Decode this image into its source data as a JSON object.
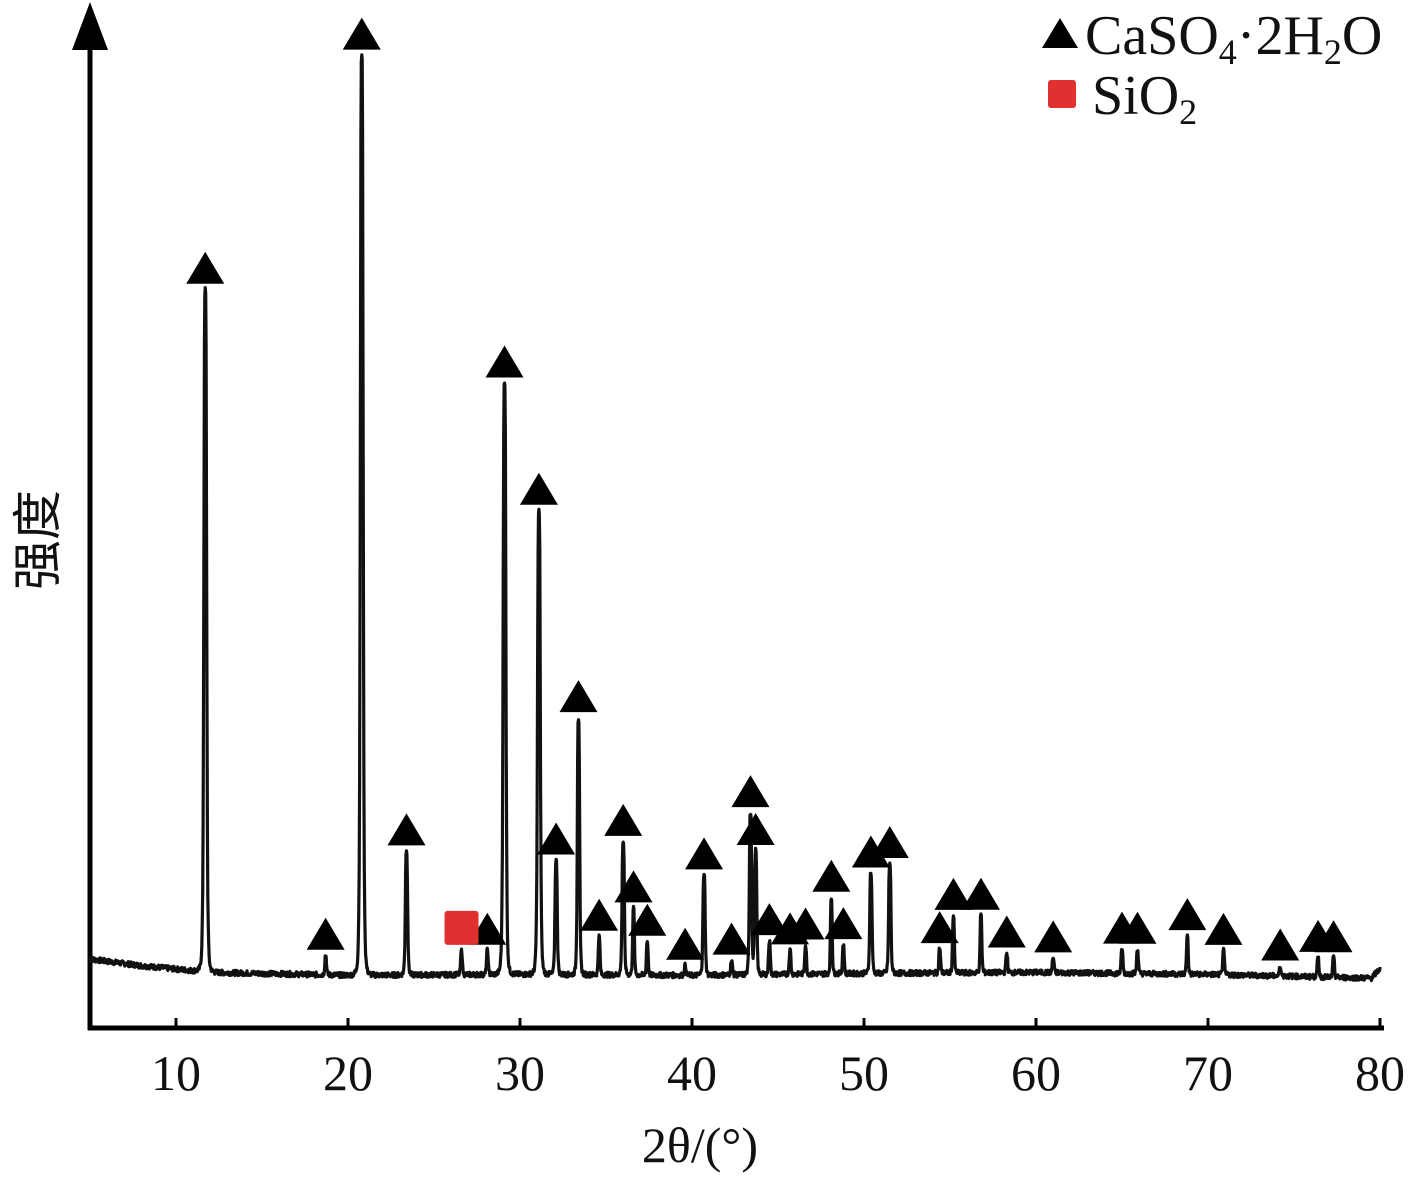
{
  "chart_data": {
    "type": "line",
    "xlabel": "2θ/(°)",
    "ylabel": "强度",
    "xlim": [
      5,
      80
    ],
    "ylim": [
      0,
      100
    ],
    "x_ticks": [
      "10",
      "20",
      "30",
      "40",
      "50",
      "60",
      "70",
      "80"
    ],
    "grid": false,
    "legend": {
      "position": "top-right",
      "entries": [
        {
          "label": "CaSO4·2H2O",
          "marker": "triangle",
          "color": "#000000"
        },
        {
          "label": "SiO2",
          "marker": "square",
          "color": "#e03030"
        }
      ]
    },
    "baseline": [
      [
        5,
        2.2
      ],
      [
        8,
        1.5
      ],
      [
        12,
        0.8
      ],
      [
        20,
        0.5
      ],
      [
        30,
        0.6
      ],
      [
        40,
        0.5
      ],
      [
        50,
        0.7
      ],
      [
        60,
        0.8
      ],
      [
        70,
        0.6
      ],
      [
        79.5,
        0.2
      ],
      [
        80,
        1.2
      ]
    ],
    "series": [
      {
        "name": "CaSO4·2H2O",
        "marker": "triangle",
        "color": "#000000",
        "peaks": [
          {
            "x": 11.7,
            "y": 71.8
          },
          {
            "x": 18.7,
            "y": 2.0
          },
          {
            "x": 20.8,
            "y": 96.8
          },
          {
            "x": 23.4,
            "y": 13.0
          },
          {
            "x": 28.1,
            "y": 2.5
          },
          {
            "x": 29.1,
            "y": 62.2
          },
          {
            "x": 31.1,
            "y": 48.8
          },
          {
            "x": 32.1,
            "y": 12.0
          },
          {
            "x": 33.4,
            "y": 27.0
          },
          {
            "x": 34.6,
            "y": 4.0
          },
          {
            "x": 36.0,
            "y": 14.0
          },
          {
            "x": 36.6,
            "y": 7.0
          },
          {
            "x": 37.4,
            "y": 3.5
          },
          {
            "x": 39.6,
            "y": 1.0
          },
          {
            "x": 40.7,
            "y": 10.5
          },
          {
            "x": 42.3,
            "y": 1.5
          },
          {
            "x": 43.4,
            "y": 17.0
          },
          {
            "x": 43.7,
            "y": 13.0
          },
          {
            "x": 44.5,
            "y": 3.5
          },
          {
            "x": 45.7,
            "y": 2.5
          },
          {
            "x": 46.6,
            "y": 3.0
          },
          {
            "x": 48.1,
            "y": 8.0
          },
          {
            "x": 48.8,
            "y": 3.0
          },
          {
            "x": 50.4,
            "y": 10.5
          },
          {
            "x": 51.5,
            "y": 11.5
          },
          {
            "x": 54.4,
            "y": 2.5
          },
          {
            "x": 55.2,
            "y": 6.0
          },
          {
            "x": 56.8,
            "y": 6.0
          },
          {
            "x": 58.3,
            "y": 2.0
          },
          {
            "x": 61.0,
            "y": 1.5
          },
          {
            "x": 65.0,
            "y": 2.5
          },
          {
            "x": 65.9,
            "y": 2.5
          },
          {
            "x": 68.8,
            "y": 4.0
          },
          {
            "x": 70.9,
            "y": 2.5
          },
          {
            "x": 74.2,
            "y": 1.0
          },
          {
            "x": 76.4,
            "y": 2.0
          },
          {
            "x": 77.3,
            "y": 2.0
          }
        ]
      },
      {
        "name": "SiO2",
        "marker": "square",
        "color": "#e03030",
        "peaks": [
          {
            "x": 26.6,
            "y": 2.5
          }
        ]
      }
    ]
  }
}
